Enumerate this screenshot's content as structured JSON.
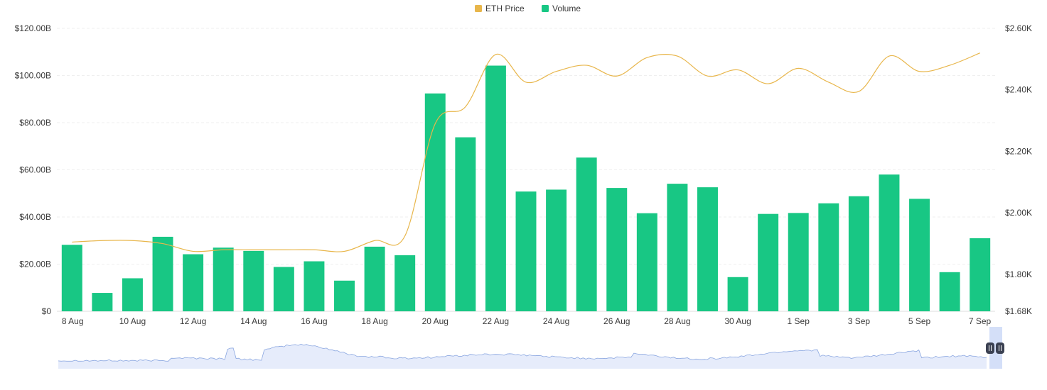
{
  "legend": [
    {
      "label": "ETH Price",
      "color": "#e8b64b"
    },
    {
      "label": "Volume",
      "color": "#18c784"
    }
  ],
  "chart_data": {
    "type": "bar",
    "title": "",
    "categories": [
      "8 Aug",
      "9 Aug",
      "10 Aug",
      "11 Aug",
      "12 Aug",
      "13 Aug",
      "14 Aug",
      "15 Aug",
      "16 Aug",
      "17 Aug",
      "18 Aug",
      "19 Aug",
      "20 Aug",
      "21 Aug",
      "22 Aug",
      "23 Aug",
      "24 Aug",
      "25 Aug",
      "26 Aug",
      "27 Aug",
      "28 Aug",
      "29 Aug",
      "30 Aug",
      "31 Aug",
      "1 Sep",
      "2 Sep",
      "3 Sep",
      "4 Sep",
      "5 Sep",
      "6 Sep",
      "7 Sep"
    ],
    "x_tick_labels": [
      "8 Aug",
      "10 Aug",
      "12 Aug",
      "14 Aug",
      "16 Aug",
      "18 Aug",
      "20 Aug",
      "22 Aug",
      "24 Aug",
      "26 Aug",
      "28 Aug",
      "30 Aug",
      "1 Sep",
      "3 Sep",
      "5 Sep",
      "7 Sep"
    ],
    "series": [
      {
        "name": "Volume",
        "type": "bar",
        "axis": "left",
        "color": "#18c784",
        "values": [
          28.2,
          7.8,
          14.0,
          31.6,
          24.2,
          27.0,
          25.6,
          18.8,
          21.2,
          13.0,
          27.4,
          23.8,
          92.4,
          73.8,
          104.2,
          50.8,
          51.6,
          65.2,
          52.3,
          41.6,
          54.1,
          52.6,
          14.5,
          41.3,
          41.7,
          45.8,
          48.8,
          58.0,
          47.7,
          16.6,
          31.0
        ]
      },
      {
        "name": "ETH Price",
        "type": "line",
        "axis": "right",
        "color": "#e8b64b",
        "values": [
          1.905,
          1.91,
          1.91,
          1.9,
          1.875,
          1.88,
          1.88,
          1.88,
          1.88,
          1.875,
          1.91,
          1.925,
          2.29,
          2.345,
          2.515,
          2.425,
          2.46,
          2.48,
          2.445,
          2.505,
          2.51,
          2.445,
          2.465,
          2.42,
          2.47,
          2.425,
          2.395,
          2.51,
          2.46,
          2.48,
          2.52
        ]
      }
    ],
    "y_left": {
      "label": "",
      "ticks": [
        "$0",
        "$20.00B",
        "$40.00B",
        "$60.00B",
        "$80.00B",
        "$100.00B",
        "$120.00B"
      ],
      "min": 0,
      "max": 120
    },
    "y_right": {
      "label": "",
      "ticks": [
        "$1.68K",
        "$1.80K",
        "$2.00K",
        "$2.20K",
        "$2.40K",
        "$2.60K"
      ],
      "min": 1.68,
      "max": 2.6,
      "tick_values": [
        1.68,
        1.8,
        2.0,
        2.2,
        2.4,
        2.6
      ]
    },
    "grid": true,
    "legend_position": "top-center"
  },
  "navigator": {
    "line_color": "#8aa6e0",
    "fill_color": "#e6ecfb",
    "window_color": "#c9d7f6",
    "handle_color": "#3b4152"
  }
}
